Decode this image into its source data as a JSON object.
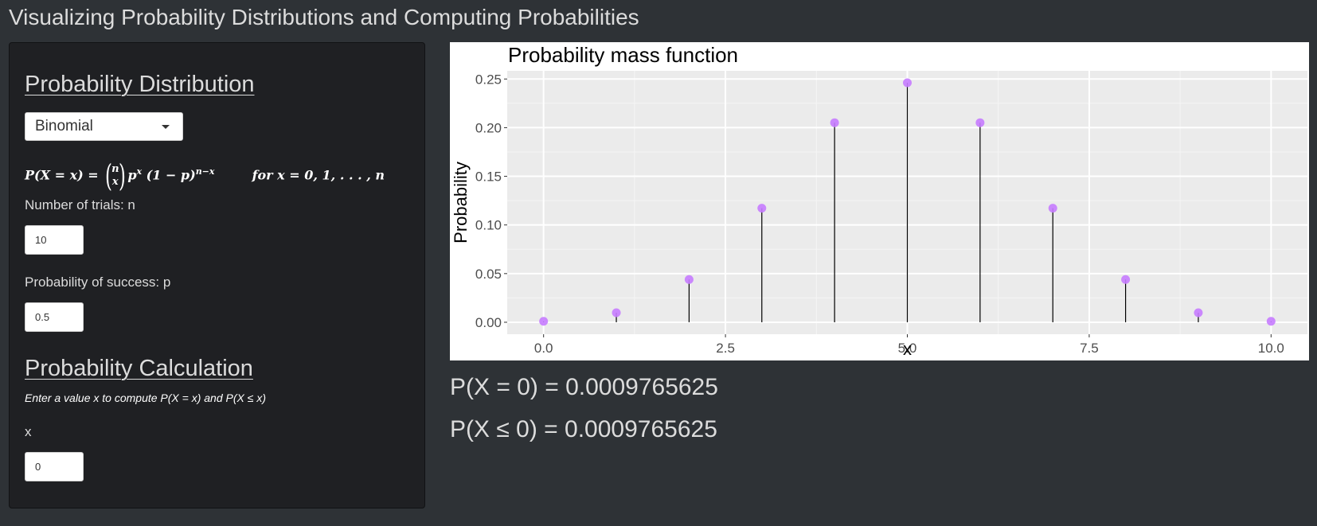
{
  "app": {
    "title": "Visualizing Probability Distributions and Computing Probabilities"
  },
  "sidebar": {
    "distribution_heading": "Probability Distribution",
    "distribution_select": {
      "selected": "Binomial"
    },
    "formula": {
      "lhs": "P(X = x) =",
      "binom_top": "n",
      "binom_bottom": "x",
      "body_p": "p",
      "exp_x": "x",
      "body_mid": "(1 − p)",
      "exp_nx": "n−x",
      "domain": "for x = 0, 1, . . . , n"
    },
    "trials": {
      "label": "Number of trials: n",
      "value": "10"
    },
    "prob_success": {
      "label": "Probability of success: p",
      "value": "0.5"
    },
    "calc_heading": "Probability Calculation",
    "calc_help": "Enter a value x to compute P(X = x) and P(X ≤ x)",
    "x_input": {
      "label": "x",
      "value": "0"
    }
  },
  "results": {
    "pmf_line": "P(X = 0) = 0.0009765625",
    "cdf_line": "P(X ≤ 0) = 0.0009765625"
  },
  "colors": {
    "page_bg": "#2e3236",
    "sidebar_bg": "#1f2023",
    "panel_bg": "#ebebeb",
    "point": "#c77cff",
    "stem": "#000000"
  },
  "chart_data": {
    "type": "scatter",
    "subtype": "lollipop",
    "title": "Probability mass function",
    "xlabel": "x",
    "ylabel": "Probability",
    "x": [
      0,
      1,
      2,
      3,
      4,
      5,
      6,
      7,
      8,
      9,
      10
    ],
    "y": [
      0.0009765625,
      0.009765625,
      0.0439453125,
      0.1171875,
      0.205078125,
      0.24609375,
      0.205078125,
      0.1171875,
      0.0439453125,
      0.009765625,
      0.0009765625
    ],
    "xlim": [
      -0.5,
      10.5
    ],
    "ylim": [
      -0.0123,
      0.2584
    ],
    "x_ticks": [
      0,
      2.5,
      5,
      7.5,
      10
    ],
    "x_tick_labels": [
      "0.0",
      "2.5",
      "5.0",
      "7.5",
      "10.0"
    ],
    "y_ticks": [
      0,
      0.05,
      0.1,
      0.15,
      0.2,
      0.25
    ],
    "y_tick_labels": [
      "0.00",
      "0.05",
      "0.10",
      "0.15",
      "0.20",
      "0.25"
    ],
    "grid": true,
    "legend": "none"
  }
}
